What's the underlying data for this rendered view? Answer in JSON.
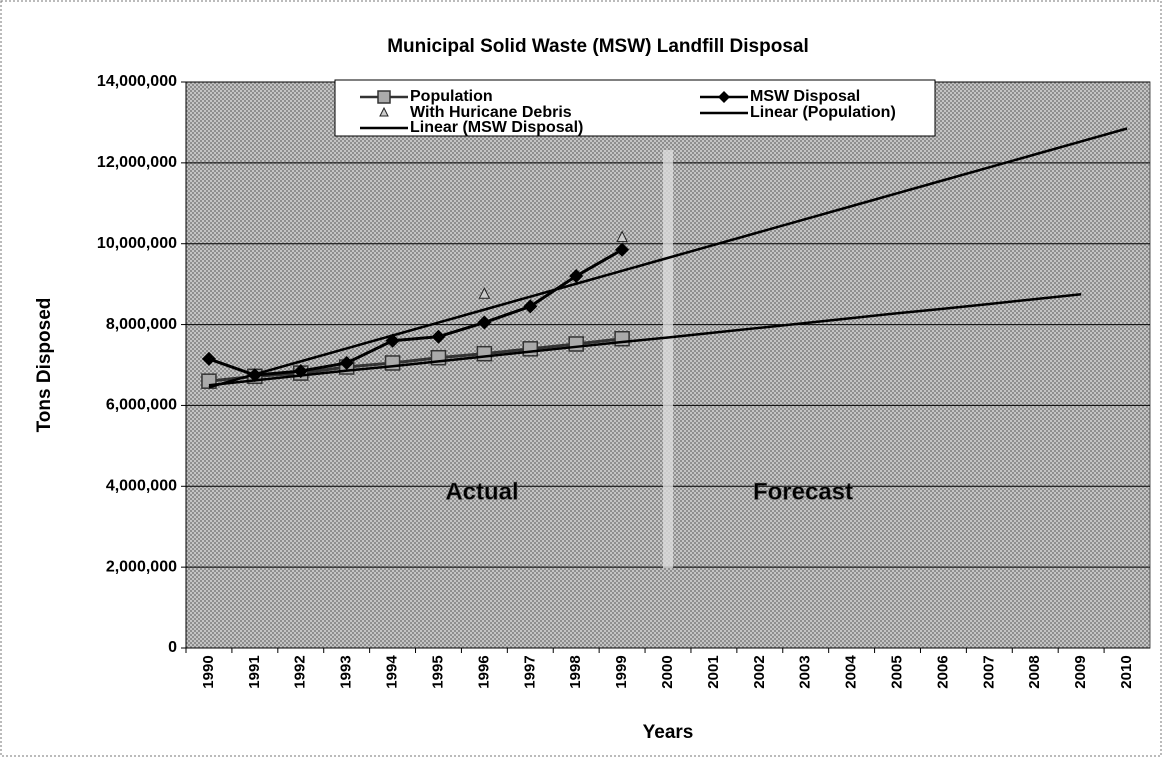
{
  "chart_data": {
    "type": "line",
    "title": "Municipal Solid Waste (MSW) Landfill Disposal",
    "x_label": "Years",
    "y_label": "Tons Disposed",
    "categories": [
      "1990",
      "1991",
      "1992",
      "1993",
      "1994",
      "1995",
      "1996",
      "1997",
      "1998",
      "1999",
      "2000",
      "2001",
      "2002",
      "2003",
      "2004",
      "2005",
      "2006",
      "2007",
      "2008",
      "2009",
      "2010"
    ],
    "series": [
      {
        "name": "Population",
        "color": "#333333",
        "marker": "square",
        "values": [
          6600000,
          6720000,
          6800000,
          6950000,
          7050000,
          7180000,
          7280000,
          7400000,
          7520000,
          7650000,
          null,
          null,
          null,
          null,
          null,
          null,
          null,
          null,
          null,
          null,
          null
        ]
      },
      {
        "name": "MSW Disposal",
        "color": "#000000",
        "marker": "diamond",
        "values": [
          7150000,
          6750000,
          6850000,
          7050000,
          7600000,
          7700000,
          8050000,
          8450000,
          9200000,
          9850000,
          null,
          null,
          null,
          null,
          null,
          null,
          null,
          null,
          null,
          null,
          null
        ]
      },
      {
        "name": "With Huricane Debris",
        "color": "#222222",
        "marker": "triangle",
        "values": [
          null,
          null,
          null,
          null,
          null,
          null,
          8750000,
          null,
          null,
          10150000,
          null,
          null,
          null,
          null,
          null,
          null,
          null,
          null,
          null,
          null,
          null
        ]
      },
      {
        "name": "Linear (Population)",
        "color": "#000000",
        "marker": "none",
        "values": [
          6500000,
          6620000,
          6740000,
          6860000,
          6970000,
          7090000,
          7210000,
          7330000,
          7450000,
          7570000,
          7680000,
          7800000,
          7920000,
          8040000,
          8160000,
          8280000,
          8390000,
          8510000,
          8630000,
          8750000,
          null
        ]
      },
      {
        "name": "Linear (MSW Disposal)",
        "color": "#000000",
        "marker": "none",
        "values": [
          6450000,
          6770000,
          7090000,
          7410000,
          7730000,
          8050000,
          8370000,
          8690000,
          9010000,
          9330000,
          9650000,
          9970000,
          10290000,
          10610000,
          10930000,
          11250000,
          11570000,
          11890000,
          12210000,
          12530000,
          12850000
        ]
      }
    ],
    "ylim": [
      0,
      14000000
    ],
    "yticks": [
      0,
      {
        "value": 2000000,
        "label": "2,000,000"
      },
      {
        "value": 4000000,
        "label": "4,000,000"
      },
      {
        "value": 6000000,
        "label": "6,000,000"
      },
      {
        "value": 8000000,
        "label": "8,000,000"
      },
      {
        "value": 10000000,
        "label": "10,000,000"
      },
      {
        "value": 12000000,
        "label": "12,000,000"
      },
      {
        "value": 14000000,
        "label": "14,000,000"
      }
    ],
    "annotations": [
      "Actual",
      "Forecast"
    ],
    "grid": true
  }
}
